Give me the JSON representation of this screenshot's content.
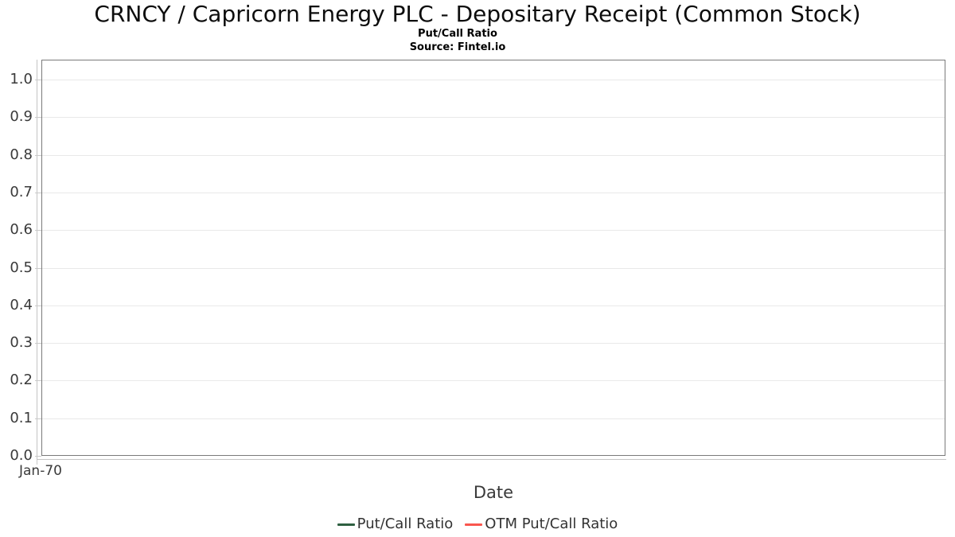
{
  "header": {
    "title": "CRNCY / Capricorn Energy PLC - Depositary Receipt (Common Stock)",
    "subtitle": "Put/Call Ratio",
    "source": "Source: Fintel.io"
  },
  "chart_data": {
    "type": "line",
    "title": "CRNCY / Capricorn Energy PLC - Depositary Receipt (Common Stock)",
    "subtitle": "Put/Call Ratio",
    "source": "Source: Fintel.io",
    "xlabel": "Date",
    "ylabel": "",
    "ylim": [
      0.0,
      1.05
    ],
    "grid": true,
    "legend_position": "bottom",
    "yticks": [
      "0.0",
      "0.1",
      "0.2",
      "0.3",
      "0.4",
      "0.5",
      "0.6",
      "0.7",
      "0.8",
      "0.9",
      "1.0"
    ],
    "xticks": [
      "Jan-70"
    ],
    "series": [
      {
        "name": "Put/Call Ratio",
        "color": "#2e6041",
        "x": [],
        "values": []
      },
      {
        "name": "OTM Put/Call Ratio",
        "color": "#f9564e",
        "x": [],
        "values": []
      }
    ],
    "colors": {
      "plot_border": "#7a7a7a",
      "gridline": "#e9e9e9",
      "axis_line": "#c4c4c4",
      "text": "#3a3a3a"
    }
  }
}
